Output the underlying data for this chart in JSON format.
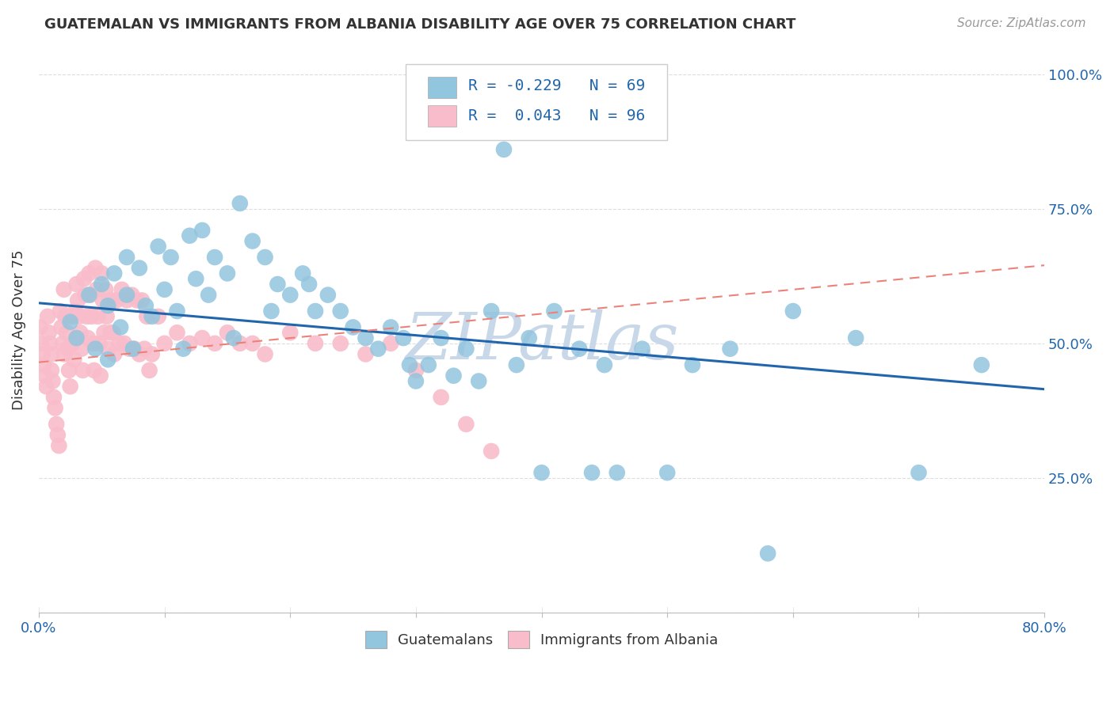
{
  "title": "GUATEMALAN VS IMMIGRANTS FROM ALBANIA DISABILITY AGE OVER 75 CORRELATION CHART",
  "source": "Source: ZipAtlas.com",
  "ylabel": "Disability Age Over 75",
  "xlim": [
    0.0,
    0.8
  ],
  "ylim": [
    0.0,
    1.05
  ],
  "xticks": [
    0.0,
    0.1,
    0.2,
    0.3,
    0.4,
    0.5,
    0.6,
    0.7,
    0.8
  ],
  "xticklabels": [
    "0.0%",
    "",
    "",
    "",
    "",
    "",
    "",
    "",
    "80.0%"
  ],
  "yticks": [
    0.0,
    0.25,
    0.5,
    0.75,
    1.0
  ],
  "yticklabels_right": [
    "",
    "25.0%",
    "50.0%",
    "75.0%",
    "100.0%"
  ],
  "blue_color": "#92C5DE",
  "pink_color": "#F9BCCA",
  "blue_line_color": "#2166AC",
  "pink_line_color": "#E8837A",
  "blue_line": {
    "x0": 0.0,
    "y0": 0.575,
    "x1": 0.8,
    "y1": 0.415
  },
  "pink_line": {
    "x0": 0.0,
    "y0": 0.465,
    "x1": 0.8,
    "y1": 0.645
  },
  "R_blue": -0.229,
  "N_blue": 69,
  "R_pink": 0.043,
  "N_pink": 96,
  "legend_labels": [
    "Guatemalans",
    "Immigrants from Albania"
  ],
  "watermark": "ZIPatlas",
  "watermark_color": "#C8D8E8",
  "blue_scatter_x": [
    0.025,
    0.03,
    0.04,
    0.045,
    0.05,
    0.055,
    0.055,
    0.06,
    0.065,
    0.07,
    0.07,
    0.075,
    0.08,
    0.085,
    0.09,
    0.095,
    0.1,
    0.105,
    0.11,
    0.115,
    0.12,
    0.125,
    0.13,
    0.135,
    0.14,
    0.15,
    0.155,
    0.16,
    0.17,
    0.18,
    0.185,
    0.19,
    0.2,
    0.21,
    0.215,
    0.22,
    0.23,
    0.24,
    0.25,
    0.26,
    0.27,
    0.28,
    0.29,
    0.295,
    0.3,
    0.31,
    0.32,
    0.33,
    0.34,
    0.35,
    0.36,
    0.37,
    0.38,
    0.39,
    0.4,
    0.41,
    0.43,
    0.44,
    0.45,
    0.46,
    0.48,
    0.5,
    0.52,
    0.55,
    0.58,
    0.6,
    0.65,
    0.7,
    0.75
  ],
  "blue_scatter_y": [
    0.54,
    0.51,
    0.59,
    0.49,
    0.61,
    0.57,
    0.47,
    0.63,
    0.53,
    0.66,
    0.59,
    0.49,
    0.64,
    0.57,
    0.55,
    0.68,
    0.6,
    0.66,
    0.56,
    0.49,
    0.7,
    0.62,
    0.71,
    0.59,
    0.66,
    0.63,
    0.51,
    0.76,
    0.69,
    0.66,
    0.56,
    0.61,
    0.59,
    0.63,
    0.61,
    0.56,
    0.59,
    0.56,
    0.53,
    0.51,
    0.49,
    0.53,
    0.51,
    0.46,
    0.43,
    0.46,
    0.51,
    0.44,
    0.49,
    0.43,
    0.56,
    0.86,
    0.46,
    0.51,
    0.26,
    0.56,
    0.49,
    0.26,
    0.46,
    0.26,
    0.49,
    0.26,
    0.46,
    0.49,
    0.11,
    0.56,
    0.51,
    0.26,
    0.46
  ],
  "pink_scatter_x": [
    0.001,
    0.002,
    0.003,
    0.004,
    0.005,
    0.006,
    0.007,
    0.008,
    0.009,
    0.01,
    0.01,
    0.011,
    0.012,
    0.013,
    0.014,
    0.015,
    0.016,
    0.017,
    0.018,
    0.019,
    0.02,
    0.02,
    0.021,
    0.022,
    0.023,
    0.024,
    0.025,
    0.026,
    0.027,
    0.028,
    0.029,
    0.03,
    0.031,
    0.032,
    0.033,
    0.034,
    0.035,
    0.036,
    0.037,
    0.038,
    0.039,
    0.04,
    0.041,
    0.042,
    0.043,
    0.044,
    0.045,
    0.046,
    0.047,
    0.048,
    0.049,
    0.05,
    0.051,
    0.052,
    0.053,
    0.054,
    0.055,
    0.056,
    0.057,
    0.058,
    0.059,
    0.06,
    0.062,
    0.064,
    0.066,
    0.068,
    0.07,
    0.072,
    0.074,
    0.076,
    0.078,
    0.08,
    0.082,
    0.084,
    0.086,
    0.088,
    0.09,
    0.095,
    0.1,
    0.11,
    0.12,
    0.13,
    0.14,
    0.15,
    0.16,
    0.17,
    0.18,
    0.2,
    0.22,
    0.24,
    0.26,
    0.28,
    0.3,
    0.32,
    0.34,
    0.36
  ],
  "pink_scatter_y": [
    0.53,
    0.5,
    0.48,
    0.46,
    0.44,
    0.42,
    0.55,
    0.52,
    0.5,
    0.48,
    0.45,
    0.43,
    0.4,
    0.38,
    0.35,
    0.33,
    0.31,
    0.56,
    0.53,
    0.5,
    0.48,
    0.6,
    0.55,
    0.52,
    0.49,
    0.45,
    0.42,
    0.55,
    0.5,
    0.47,
    0.56,
    0.61,
    0.58,
    0.55,
    0.52,
    0.49,
    0.45,
    0.62,
    0.59,
    0.55,
    0.51,
    0.63,
    0.59,
    0.55,
    0.5,
    0.45,
    0.64,
    0.6,
    0.55,
    0.5,
    0.44,
    0.63,
    0.58,
    0.52,
    0.6,
    0.55,
    0.49,
    0.58,
    0.52,
    0.58,
    0.52,
    0.48,
    0.58,
    0.5,
    0.6,
    0.5,
    0.58,
    0.49,
    0.59,
    0.49,
    0.58,
    0.48,
    0.58,
    0.49,
    0.55,
    0.45,
    0.48,
    0.55,
    0.5,
    0.52,
    0.5,
    0.51,
    0.5,
    0.52,
    0.5,
    0.5,
    0.48,
    0.52,
    0.5,
    0.5,
    0.48,
    0.5,
    0.45,
    0.4,
    0.35,
    0.3
  ],
  "grid_color": "#DDDDDD",
  "bg_color": "#FFFFFF",
  "title_color": "#333333",
  "axis_color": "#2166AC",
  "tick_color": "#2166AC"
}
